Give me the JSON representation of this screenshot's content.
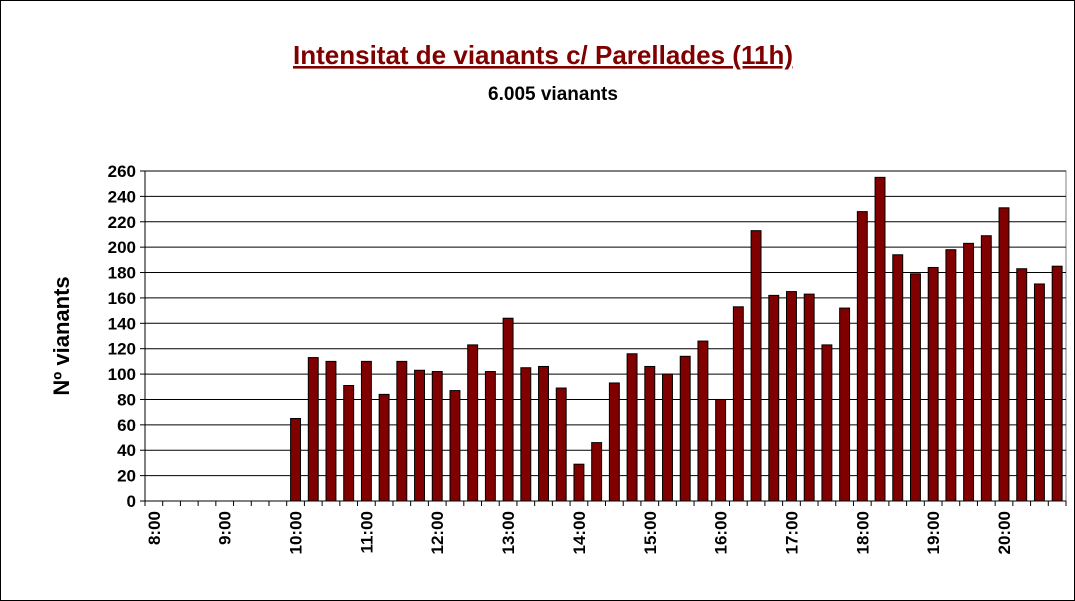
{
  "chart_data": {
    "type": "bar",
    "title": "Intensitat de vianants c/ Parellades (11h)",
    "subtitle": "6.005 vianants",
    "y_label": "Nº vianants",
    "categories": [
      "8:00",
      null,
      null,
      null,
      "9:00",
      null,
      null,
      null,
      "10:00",
      null,
      null,
      null,
      "11:00",
      null,
      null,
      null,
      "12:00",
      null,
      null,
      null,
      "13:00",
      null,
      null,
      null,
      "14:00",
      null,
      null,
      null,
      "15:00",
      null,
      null,
      null,
      "16:00",
      null,
      null,
      null,
      "17:00",
      null,
      null,
      null,
      "18:00",
      null,
      null,
      null,
      "19:00",
      null,
      null,
      null,
      "20:00",
      null,
      null,
      null
    ],
    "values": [
      0,
      0,
      0,
      0,
      0,
      0,
      0,
      0,
      65,
      113,
      110,
      91,
      110,
      84,
      110,
      103,
      102,
      87,
      123,
      102,
      144,
      105,
      106,
      89,
      29,
      46,
      93,
      116,
      106,
      100,
      114,
      126,
      80,
      153,
      213,
      162,
      165,
      163,
      123,
      152,
      228,
      255,
      194,
      179,
      184,
      198,
      203,
      209,
      231,
      183,
      171,
      185
    ],
    "color": "#800000",
    "ylim": [
      0,
      260
    ],
    "yticks": [
      0,
      20,
      40,
      60,
      80,
      100,
      120,
      140,
      160,
      180,
      200,
      220,
      240,
      260
    ],
    "grid": true
  }
}
